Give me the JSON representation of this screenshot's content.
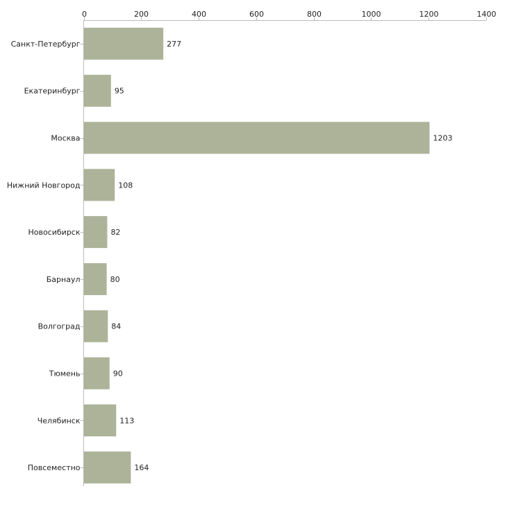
{
  "chart_data": {
    "type": "bar",
    "orientation": "horizontal",
    "title": "",
    "xlabel": "",
    "ylabel": "",
    "xlim": [
      0,
      1400
    ],
    "ticks": [
      0,
      200,
      400,
      600,
      800,
      1000,
      1200,
      1400
    ],
    "tick_labels": [
      "0",
      "200",
      "400",
      "600",
      "800",
      "1000",
      "1200",
      "1400"
    ],
    "categories": [
      "Санкт-Петербург",
      "Екатеринбург",
      "Москва",
      "Нижний Новгород",
      "Новосибирск",
      "Барнаул",
      "Волгоград",
      "Тюмень",
      "Челябинск",
      "Повсеместно"
    ],
    "values": [
      277,
      95,
      1203,
      108,
      82,
      80,
      84,
      90,
      113,
      164
    ],
    "value_labels": [
      "277",
      "95",
      "1203",
      "108",
      "82",
      "80",
      "84",
      "90",
      "113",
      "164"
    ],
    "grid": false,
    "legend": "none",
    "bar_color": "#adb399",
    "axis_color": "#bbbbbb"
  }
}
